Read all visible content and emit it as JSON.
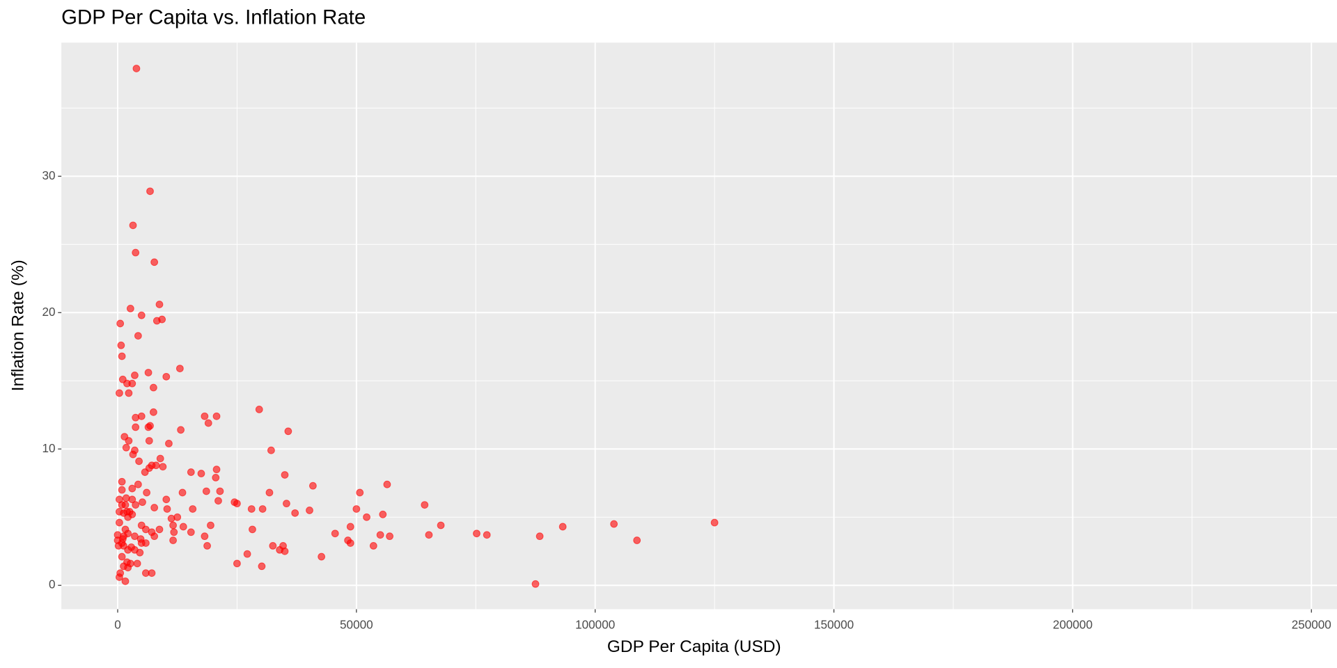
{
  "chart_data": {
    "type": "scatter",
    "title": "GDP Per Capita vs. Inflation Rate",
    "x_label": "GDP Per Capita (USD)",
    "y_label": "Inflation Rate (%)",
    "color": "#ff0000",
    "grid": true,
    "minor_grid": true,
    "xlim": [
      -11786,
      255357
    ],
    "ylim": [
      -1.75,
      39.8
    ],
    "xticks": [
      0,
      50000,
      100000,
      150000,
      200000,
      250000
    ],
    "yticks": [
      0,
      10,
      20,
      30
    ],
    "x": [
      3929,
      6786,
      3214,
      3750,
      7679,
      2679,
      8750,
      5000,
      9286,
      8214,
      536,
      4286,
      714,
      893,
      13036,
      6429,
      10179,
      3571,
      1071,
      1964,
      3036,
      357,
      2321,
      7500,
      29643,
      7500,
      5000,
      3750,
      18214,
      20714,
      19000,
      6786,
      6429,
      3750,
      13214,
      35714,
      1429,
      2321,
      6607,
      10714,
      1786,
      32143,
      3571,
      3214,
      8929,
      4464,
      7143,
      8036,
      9464,
      6607,
      20714,
      15357,
      17500,
      5714,
      35000,
      20536,
      893,
      56429,
      40893,
      4286,
      3036,
      893,
      18571,
      21429,
      13571,
      31786,
      6071,
      50714,
      357,
      1786,
      3036,
      10179,
      5179,
      21071,
      24464,
      25000,
      35357,
      64286,
      3750,
      893,
      1607,
      7679,
      10357,
      15714,
      28036,
      30357,
      40179,
      50000,
      357,
      1964,
      1250,
      2500,
      3036,
      37143,
      55536,
      52143,
      12500,
      11250,
      2143,
      357,
      125000,
      103929,
      5000,
      11607,
      67679,
      19464,
      93214,
      48750,
      13750,
      5893,
      8750,
      28214,
      1607,
      2143,
      11786,
      15357,
      7143,
      75179,
      45536,
      77321,
      65179,
      55000,
      0,
      1250,
      7679,
      18214,
      88393,
      3571,
      56964,
      4821,
      1071,
      0,
      108750,
      11607,
      48214,
      893,
      48750,
      5000,
      5893,
      53571,
      18750,
      34643,
      32500,
      179,
      1250,
      2857,
      3571,
      2143,
      33929,
      35000,
      4643,
      27143,
      42679,
      893,
      1964,
      4107,
      25000,
      2679,
      1250,
      30179,
      2143,
      5893,
      7143,
      536,
      357,
      1607,
      87500
    ],
    "y": [
      37.9,
      28.9,
      26.4,
      24.4,
      23.7,
      20.3,
      20.6,
      19.8,
      19.5,
      19.4,
      19.2,
      18.3,
      17.6,
      16.8,
      15.9,
      15.6,
      15.3,
      15.4,
      15.1,
      14.8,
      14.8,
      14.1,
      14.1,
      14.5,
      12.9,
      12.7,
      12.4,
      12.3,
      12.4,
      12.4,
      11.9,
      11.7,
      11.6,
      11.6,
      11.4,
      11.3,
      10.9,
      10.6,
      10.6,
      10.4,
      10.1,
      9.9,
      9.9,
      9.6,
      9.3,
      9.1,
      8.8,
      8.8,
      8.7,
      8.6,
      8.5,
      8.3,
      8.2,
      8.3,
      8.1,
      7.9,
      7.6,
      7.4,
      7.3,
      7.4,
      7.1,
      7.0,
      6.9,
      6.9,
      6.8,
      6.8,
      6.8,
      6.8,
      6.3,
      6.4,
      6.3,
      6.3,
      6.1,
      6.2,
      6.1,
      6.0,
      6.0,
      5.9,
      5.9,
      5.9,
      5.9,
      5.7,
      5.6,
      5.6,
      5.6,
      5.6,
      5.5,
      5.6,
      5.4,
      5.4,
      5.3,
      5.4,
      5.2,
      5.3,
      5.2,
      5.0,
      5.0,
      4.9,
      5.0,
      4.6,
      4.6,
      4.5,
      4.4,
      4.4,
      4.4,
      4.4,
      4.3,
      4.3,
      4.3,
      4.1,
      4.1,
      4.1,
      4.1,
      3.8,
      3.9,
      3.9,
      3.9,
      3.8,
      3.8,
      3.7,
      3.7,
      3.7,
      3.7,
      3.6,
      3.6,
      3.6,
      3.6,
      3.6,
      3.6,
      3.4,
      3.4,
      3.3,
      3.3,
      3.3,
      3.3,
      3.1,
      3.1,
      3.1,
      3.1,
      2.9,
      2.9,
      2.9,
      2.9,
      2.9,
      2.9,
      2.8,
      2.6,
      2.6,
      2.6,
      2.5,
      2.4,
      2.3,
      2.1,
      2.1,
      1.7,
      1.6,
      1.6,
      1.6,
      1.4,
      1.4,
      1.3,
      0.9,
      0.9,
      0.9,
      0.6,
      0.3,
      0.1
    ]
  }
}
